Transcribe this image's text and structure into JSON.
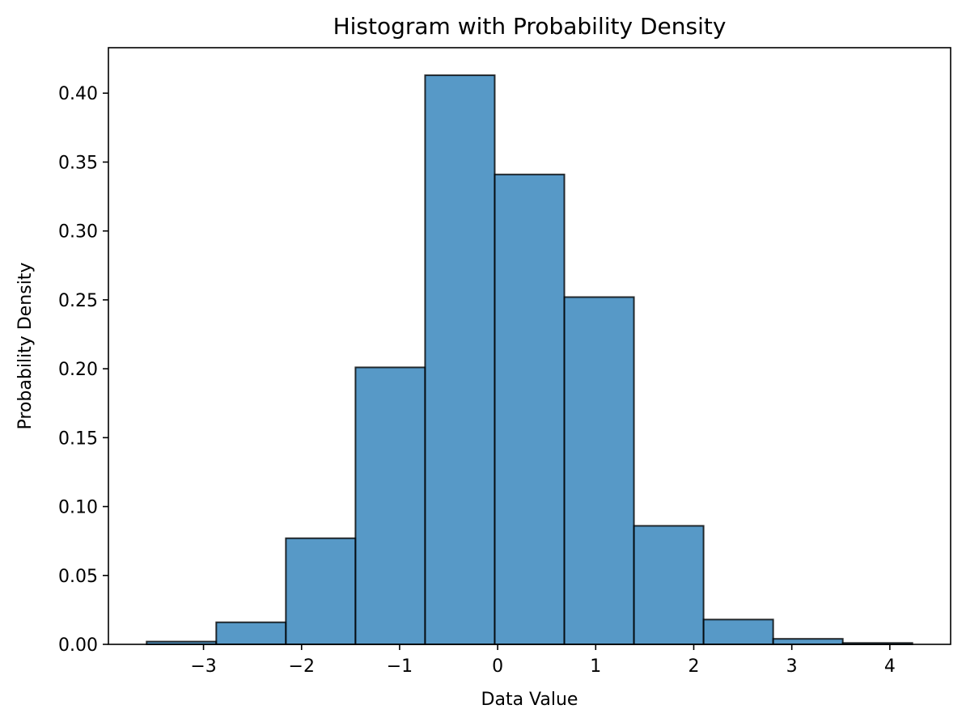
{
  "chart_data": {
    "type": "bar",
    "title": "Histogram with Probability Density",
    "xlabel": "Data Value",
    "ylabel": "Probability Density",
    "bin_edges": [
      -3.58,
      -2.87,
      -2.16,
      -1.45,
      -0.74,
      -0.03,
      0.68,
      1.39,
      2.1,
      2.81,
      3.52,
      4.23
    ],
    "values": [
      0.002,
      0.016,
      0.077,
      0.201,
      0.413,
      0.341,
      0.252,
      0.086,
      0.018,
      0.004,
      0.001
    ],
    "xlim": [
      -3.97,
      4.62
    ],
    "ylim": [
      0,
      0.433
    ],
    "xticks": [
      -3,
      -2,
      -1,
      0,
      1,
      2,
      3,
      4
    ],
    "xtick_labels": [
      "−3",
      "−2",
      "−1",
      "0",
      "1",
      "2",
      "3",
      "4"
    ],
    "yticks": [
      0.0,
      0.05,
      0.1,
      0.15,
      0.2,
      0.25,
      0.3,
      0.35,
      0.4
    ],
    "ytick_labels": [
      "0.00",
      "0.05",
      "0.10",
      "0.15",
      "0.20",
      "0.25",
      "0.30",
      "0.35",
      "0.40"
    ],
    "bar_color": "#1f77b4",
    "bar_alpha": 0.75,
    "edge_color": "#000000",
    "grid": false,
    "legend": "none"
  }
}
